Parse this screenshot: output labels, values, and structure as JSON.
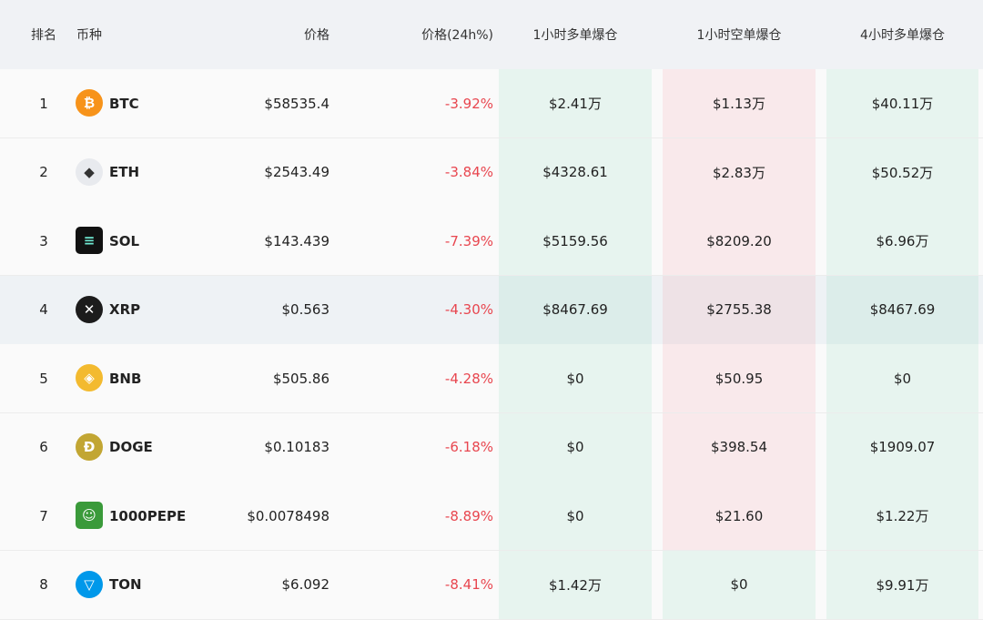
{
  "table": {
    "headers": [
      "排名",
      "币种",
      "价格",
      "价格(24h%)",
      "1小时多单爆仓",
      "1小时空单爆仓",
      "4小时多单爆仓"
    ],
    "rows": [
      [
        "1",
        "BTC",
        "$58535.4",
        "-3.92%",
        "$2.41万",
        "$1.13万",
        "$40.11万"
      ],
      [
        "2",
        "ETH",
        "$2543.49",
        "-3.84%",
        "$4328.61",
        "$2.83万",
        "$50.52万"
      ],
      [
        "3",
        "SOL",
        "$143.439",
        "-7.39%",
        "$5159.56",
        "$8209.20",
        "$6.96万"
      ],
      [
        "4",
        "XRP",
        "$0.563",
        "-4.30%",
        "$8467.69",
        "$2755.38",
        "$8467.69"
      ],
      [
        "5",
        "BNB",
        "$505.86",
        "-4.28%",
        "$0",
        "$50.95",
        "$0"
      ],
      [
        "6",
        "DOGE",
        "$0.10183",
        "-6.18%",
        "$0",
        "$398.54",
        "$1909.07"
      ],
      [
        "7",
        "1000PEPE",
        "$0.0078498",
        "-8.89%",
        "$0",
        "$21.60",
        "$1.22万"
      ],
      [
        "8",
        "TON",
        "$6.092",
        "-8.41%",
        "$1.42万",
        "$0",
        "$9.91万"
      ]
    ]
  }
}
